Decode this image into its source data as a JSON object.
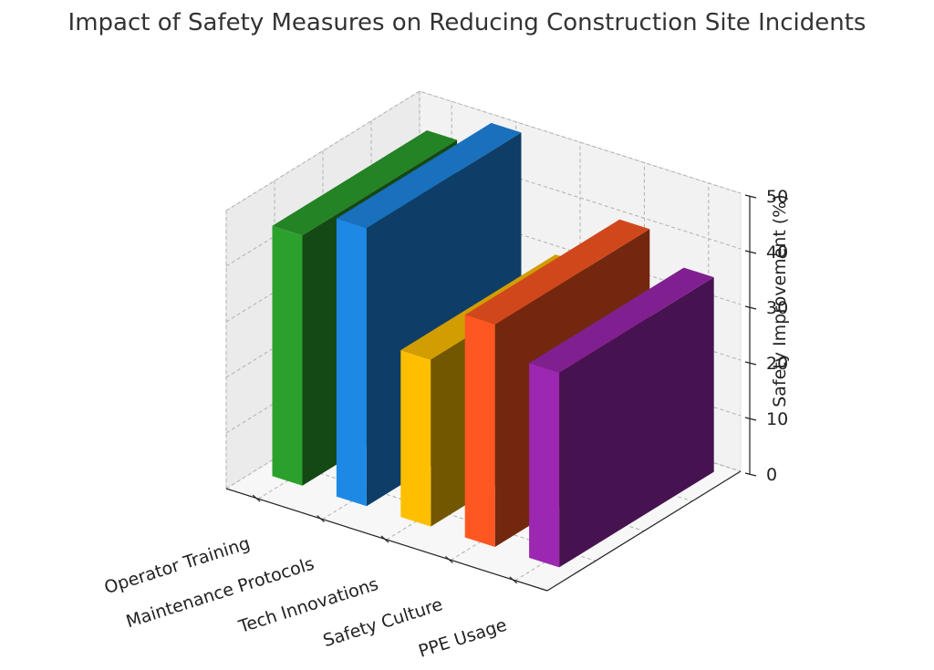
{
  "chart_data": {
    "type": "bar",
    "title": "Impact of Safety Measures on Reducing Construction Site Incidents",
    "categories": [
      "Operator Training",
      "Maintenance Protocols",
      "Tech Innovations",
      "Safety Culture",
      "PPE Usage"
    ],
    "values": [
      45,
      50,
      30,
      40,
      35
    ],
    "colors": [
      "#2ca02c",
      "#1e88e5",
      "#ffbf00",
      "#ff5722",
      "#9c27b0"
    ],
    "zlabel": "Safety Improvement (%)",
    "zticks": [
      0,
      10,
      20,
      30,
      40,
      50
    ],
    "zlim": [
      0,
      50
    ],
    "grid": true
  }
}
